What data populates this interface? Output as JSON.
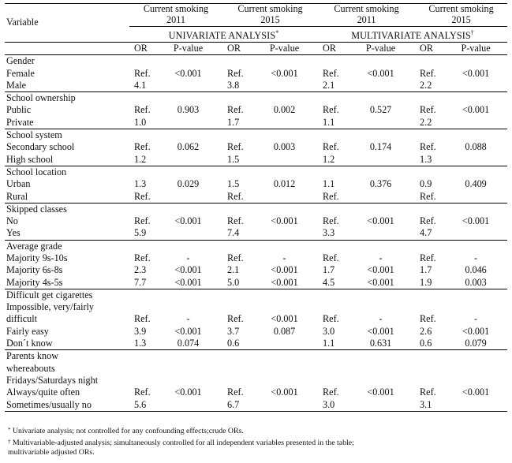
{
  "header": {
    "variable_label": "Variable",
    "year_groups": [
      {
        "line1": "Current smoking",
        "line2": "2011"
      },
      {
        "line1": "Current smoking",
        "line2": "2015"
      },
      {
        "line1": "Current smoking",
        "line2": "2011"
      },
      {
        "line1": "Current smoking",
        "line2": "2015"
      }
    ],
    "univariate_label": "UNIVARIATE ANALYSIS",
    "univariate_mark": "*",
    "multivariate_label": "MULTIVARIATE ANALYSIS",
    "multivariate_mark": "†",
    "or_label": "OR",
    "pvalue_label": "P-value"
  },
  "sections": [
    {
      "title": "Gender",
      "rows": [
        {
          "label": "Female",
          "cells": [
            "Ref.",
            "<0.001",
            "Ref.",
            "<0.001",
            "Ref.",
            "<0.001",
            "Ref.",
            "<0.001"
          ]
        },
        {
          "label": "Male",
          "cells": [
            "4.1",
            "",
            "3.8",
            "",
            "2.1",
            "",
            "2.2",
            ""
          ]
        }
      ]
    },
    {
      "title": "School ownership",
      "rows": [
        {
          "label": "Public",
          "cells": [
            "Ref.",
            "0.903",
            "Ref.",
            "0.002",
            "Ref.",
            "0.527",
            "Ref.",
            "<0.001"
          ]
        },
        {
          "label": "Private",
          "cells": [
            "1.0",
            "",
            "1.7",
            "",
            "1.1",
            "",
            "2.2",
            ""
          ]
        }
      ]
    },
    {
      "title": "School system",
      "rows": [
        {
          "label": "Secondary school",
          "cells": [
            "Ref.",
            "0.062",
            "Ref.",
            "0.003",
            "Ref.",
            "0.174",
            "Ref.",
            "0.088"
          ]
        },
        {
          "label": "High school",
          "cells": [
            "1.2",
            "",
            "1.5",
            "",
            "1.2",
            "",
            "1.3",
            ""
          ]
        }
      ]
    },
    {
      "title": "School location",
      "rows": [
        {
          "label": "Urban",
          "cells": [
            "1.3",
            "0.029",
            "1.5",
            "0.012",
            "1.1",
            "0.376",
            "0.9",
            "0.409"
          ]
        },
        {
          "label": "Rural",
          "cells": [
            "Ref.",
            "",
            "Ref.",
            "",
            "Ref.",
            "",
            "Ref.",
            ""
          ]
        }
      ]
    },
    {
      "title": "Skipped classes",
      "rows": [
        {
          "label": "No",
          "cells": [
            "Ref.",
            "<0.001",
            "Ref.",
            "<0.001",
            "Ref.",
            "<0.001",
            "Ref.",
            "<0.001"
          ]
        },
        {
          "label": "Yes",
          "cells": [
            "5.9",
            "",
            "7.4",
            "",
            "3.3",
            "",
            "4.7",
            ""
          ]
        }
      ]
    },
    {
      "title": "Average grade",
      "rows": [
        {
          "label": "Majority 9s-10s",
          "cells": [
            "Ref.",
            "-",
            "Ref.",
            "-",
            "Ref.",
            "-",
            "Ref.",
            "-"
          ]
        },
        {
          "label": "Majority 6s-8s",
          "cells": [
            "2.3",
            "<0.001",
            "2.1",
            "<0.001",
            "1.7",
            "<0.001",
            "1.7",
            "0.046"
          ]
        },
        {
          "label": "Majority 4s-5s",
          "cells": [
            "7.7",
            "<0.001",
            "5.0",
            "<0.001",
            "4.5",
            "<0.001",
            "1.9",
            "0.003"
          ]
        }
      ]
    },
    {
      "title": "Difficult get cigarettes",
      "rows": [
        {
          "label": "Impossible, very/fairly",
          "cells": [
            "",
            "",
            "",
            "",
            "",
            "",
            "",
            ""
          ]
        },
        {
          "label": "difficult",
          "cells": [
            "Ref.",
            "-",
            "Ref.",
            "<0.001",
            "Ref.",
            "-",
            "Ref.",
            "-"
          ]
        },
        {
          "label": "Fairly easy",
          "cells": [
            "3.9",
            "<0.001",
            "3.7",
            "0.087",
            "3.0",
            "<0.001",
            "2.6",
            "<0.001"
          ]
        },
        {
          "label": "Don´t know",
          "cells": [
            "1.3",
            "0.074",
            "0.6",
            "",
            "1.1",
            "0.631",
            "0.6",
            "0.079"
          ]
        }
      ]
    },
    {
      "title": "Parents know",
      "title_more": [
        "whereabouts",
        "Fridays/Saturdays night"
      ],
      "rows": [
        {
          "label": "Always/quite often",
          "cells": [
            "Ref.",
            "<0.001",
            "Ref.",
            "<0.001",
            "Ref.",
            "<0.001",
            "Ref.",
            "<0.001"
          ]
        },
        {
          "label": "Sometimes/usually no",
          "cells": [
            "5.6",
            "",
            "6.7",
            "",
            "3.0",
            "",
            "3.1",
            ""
          ]
        }
      ]
    }
  ],
  "footnotes": {
    "f1_mark": "*",
    "f1_text": "Univariate analysis; not controlled for any confounding effects;crude ORs.",
    "f2_mark": "†",
    "f2_text": "Multivariable-adjusted analysis; simultaneously controlled for all independent variables presented in the table;",
    "f2_text_cont": "multivariable adjusted ORs."
  }
}
